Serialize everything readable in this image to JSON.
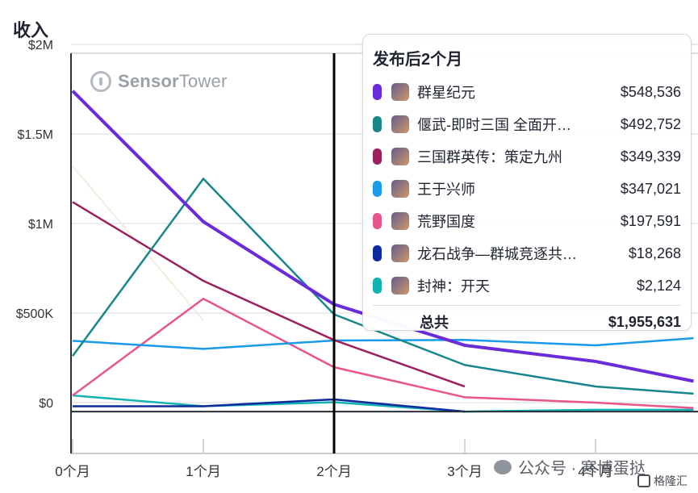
{
  "chart_data": {
    "type": "line",
    "ylabel": "收入",
    "y_ticks": [
      "$2M",
      "$1.5M",
      "$1M",
      "$500K",
      "$0"
    ],
    "y_tick_values": [
      2000000,
      1500000,
      1000000,
      500000,
      0
    ],
    "ylim": [
      -300000,
      2000000
    ],
    "x_ticks": [
      "0个月",
      "1个月",
      "2个月",
      "3个月",
      "4个月"
    ],
    "x_tick_values": [
      0,
      1,
      2,
      3,
      4
    ],
    "xlim": [
      0,
      4.75
    ],
    "grid": true,
    "highlight_x": 2,
    "series": [
      {
        "name": "群星纪元",
        "color": "#6a2bd9",
        "width": 4,
        "x": [
          0,
          1,
          2,
          3,
          4,
          4.75
        ],
        "y": [
          1740000,
          1010000,
          548536,
          320000,
          230000,
          120000
        ]
      },
      {
        "name": "偃武-即时三国 全面开…",
        "color": "#17878a",
        "width": 2.5,
        "x": [
          0,
          1,
          2,
          3,
          4,
          4.75
        ],
        "y": [
          260000,
          1250000,
          492752,
          210000,
          90000,
          50000
        ]
      },
      {
        "name": "三国群英传：策定九州",
        "color": "#9c1f5e",
        "width": 2.5,
        "x": [
          0,
          1,
          2,
          3
        ],
        "y": [
          1120000,
          680000,
          349339,
          90000
        ]
      },
      {
        "name": "王于兴师",
        "color": "#1a9be8",
        "width": 2.5,
        "x": [
          0,
          1,
          2,
          3,
          4,
          4.75
        ],
        "y": [
          345000,
          300000,
          347021,
          350000,
          320000,
          360000
        ]
      },
      {
        "name": "荒野国度",
        "color": "#e8548c",
        "width": 2.5,
        "x": [
          0,
          1,
          2,
          3,
          4,
          4.75
        ],
        "y": [
          40000,
          580000,
          197591,
          30000,
          0,
          -30000
        ]
      },
      {
        "name": "龙石战争—群城竞逐共…",
        "color": "#0d2a9e",
        "width": 2.5,
        "x": [
          0,
          1,
          2,
          3
        ],
        "y": [
          -20000,
          -20000,
          18268,
          -50000
        ]
      },
      {
        "name": "封神：开天",
        "color": "#12b3b3",
        "width": 2.5,
        "x": [
          0,
          1,
          2,
          3,
          4,
          4.75
        ],
        "y": [
          40000,
          -20000,
          2124,
          -50000,
          -40000,
          -40000
        ]
      }
    ],
    "faint_series_color": "#efeede",
    "faint_series": {
      "x": [
        0,
        1
      ],
      "y": [
        1320000,
        460000
      ]
    },
    "tooltip": {
      "title": "发布后2个月",
      "rows": [
        {
          "name": "群星纪元",
          "value": "$548,536",
          "color": "#6a2bd9"
        },
        {
          "name": "偃武-即时三国 全面开…",
          "value": "$492,752",
          "color": "#17878a"
        },
        {
          "name": "三国群英传：策定九州",
          "value": "$349,339",
          "color": "#9c1f5e"
        },
        {
          "name": "王于兴师",
          "value": "$347,021",
          "color": "#1a9be8"
        },
        {
          "name": "荒野国度",
          "value": "$197,591",
          "color": "#e8548c"
        },
        {
          "name": "龙石战争—群城竞逐共…",
          "value": "$18,268",
          "color": "#0d2a9e"
        },
        {
          "name": "封神：开天",
          "value": "$2,124",
          "color": "#12b3b3"
        }
      ],
      "total_label": "总共",
      "total_value": "$1,955,631"
    }
  },
  "watermark": {
    "sensor": "Sensor",
    "tower": "Tower"
  },
  "footer": {
    "wechat": "公众号 · 寒博蛋挞",
    "gelonghui": "格隆汇"
  }
}
